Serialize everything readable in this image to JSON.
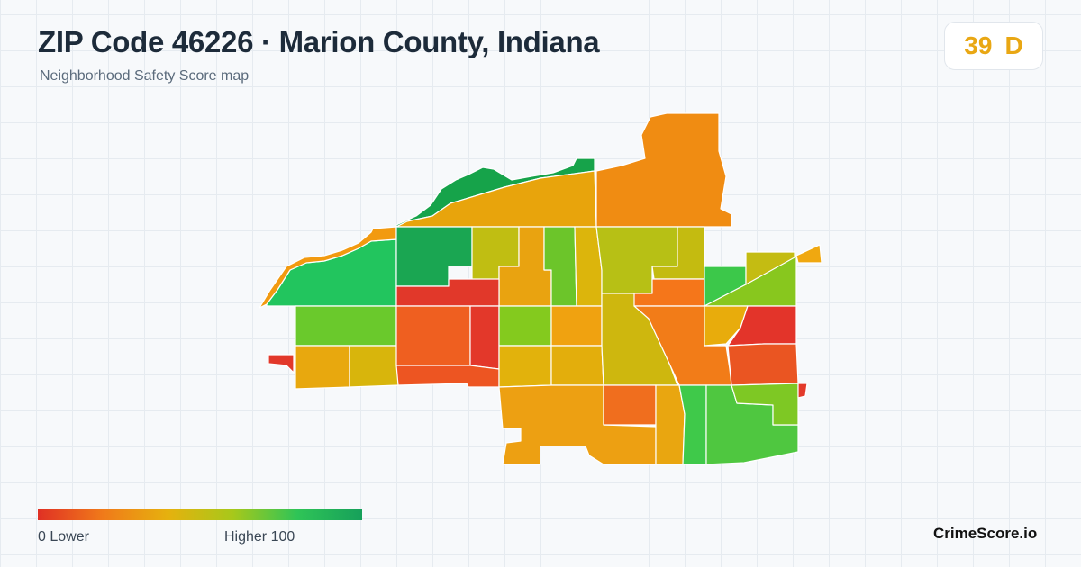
{
  "header": {
    "title": "ZIP Code 46226 · Marion County, Indiana",
    "subtitle": "Neighborhood Safety Score map"
  },
  "score": {
    "value": "39",
    "grade": "D",
    "color": "#e9a713"
  },
  "legend": {
    "min_label": "0  Lower",
    "max_label": "Higher  100",
    "gradient": [
      "#e03024",
      "#f07a1a",
      "#e6b10e",
      "#a8c81a",
      "#2fc457",
      "#16a05a"
    ]
  },
  "brand": "CrimeScore.io",
  "map": {
    "regions": [
      {
        "name": "river-west",
        "color": "#22c55e"
      },
      {
        "name": "river-edge",
        "color": "#f29a10"
      },
      {
        "name": "north-strip",
        "color": "#16a34a"
      },
      {
        "name": "north-central",
        "color": "#e8a40c"
      },
      {
        "name": "northeast-large",
        "color": "#f08c12"
      },
      {
        "name": "nw-green-block",
        "color": "#1aa652"
      },
      {
        "name": "olive-a",
        "color": "#c0be12"
      },
      {
        "name": "amber-a",
        "color": "#e9a310"
      },
      {
        "name": "lime-a",
        "color": "#6cc52a"
      },
      {
        "name": "yellow-a",
        "color": "#dcb50c"
      },
      {
        "name": "olive-b",
        "color": "#b7c015"
      },
      {
        "name": "olive-c",
        "color": "#c4bb10"
      },
      {
        "name": "red-a",
        "color": "#e1382a"
      },
      {
        "name": "west-lime",
        "color": "#6ac92c"
      },
      {
        "name": "west-amber",
        "color": "#e8a80e"
      },
      {
        "name": "west-yellow",
        "color": "#d8b50c"
      },
      {
        "name": "orange-a",
        "color": "#ef5f20"
      },
      {
        "name": "red-b",
        "color": "#e3382a"
      },
      {
        "name": "orange-b",
        "color": "#ed5522"
      },
      {
        "name": "lime-b",
        "color": "#84ca1e"
      },
      {
        "name": "amber-b",
        "color": "#f0a210"
      },
      {
        "name": "yellow-b",
        "color": "#e2b20c"
      },
      {
        "name": "amber-c",
        "color": "#e3ae0c"
      },
      {
        "name": "olive-d",
        "color": "#ceb70e"
      },
      {
        "name": "orange-c",
        "color": "#f5761a"
      },
      {
        "name": "orange-d",
        "color": "#f27c18"
      },
      {
        "name": "green-a",
        "color": "#3cc84a"
      },
      {
        "name": "lime-c",
        "color": "#88c71e"
      },
      {
        "name": "olive-e",
        "color": "#c4bc12"
      },
      {
        "name": "amber-d",
        "color": "#e8ac0c"
      },
      {
        "name": "red-c",
        "color": "#e3342a"
      },
      {
        "name": "orange-e",
        "color": "#ea5522"
      },
      {
        "name": "south-amber",
        "color": "#eda012"
      },
      {
        "name": "orange-f",
        "color": "#f06e1e"
      },
      {
        "name": "amber-e",
        "color": "#e9a610"
      },
      {
        "name": "green-b",
        "color": "#3fc94a"
      },
      {
        "name": "green-c",
        "color": "#4fc740"
      },
      {
        "name": "lime-d",
        "color": "#7ec824"
      },
      {
        "name": "tiny-west",
        "color": "#e2382a"
      },
      {
        "name": "tiny-east",
        "color": "#f0a810"
      },
      {
        "name": "tiny-se",
        "color": "#e33a2a"
      }
    ]
  }
}
